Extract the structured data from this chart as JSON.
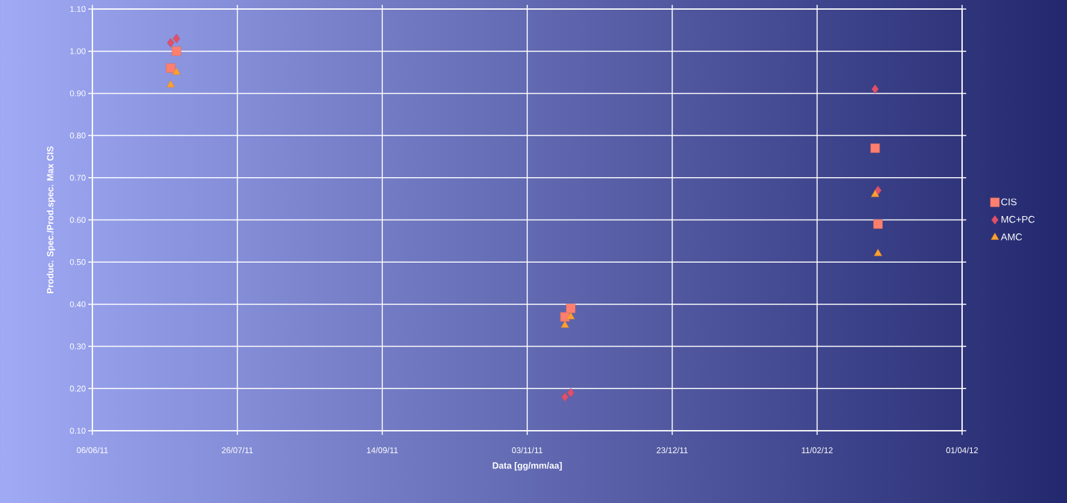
{
  "chart_data": {
    "type": "scatter",
    "xlabel": "Data [gg/mm/aa]",
    "ylabel": "Produc. Spec./Prod.spec. Max CIS",
    "xlim": [
      "2011-06-06",
      "2012-04-01"
    ],
    "xticks": [
      {
        "value": "2011-06-06",
        "label": "06/06/11"
      },
      {
        "value": "2011-07-26",
        "label": "26/07/11"
      },
      {
        "value": "2011-09-14",
        "label": "14/09/11"
      },
      {
        "value": "2011-11-03",
        "label": "03/11/11"
      },
      {
        "value": "2011-12-23",
        "label": "23/12/11"
      },
      {
        "value": "2012-02-11",
        "label": "11/02/12"
      },
      {
        "value": "2012-04-01",
        "label": "01/04/12"
      }
    ],
    "ylim": [
      0.1,
      1.1
    ],
    "yticks": [
      {
        "value": 0.1,
        "label": "0.10"
      },
      {
        "value": 0.2,
        "label": "0.20"
      },
      {
        "value": 0.3,
        "label": "0.30"
      },
      {
        "value": 0.4,
        "label": "0.40"
      },
      {
        "value": 0.5,
        "label": "0.50"
      },
      {
        "value": 0.6,
        "label": "0.60"
      },
      {
        "value": 0.7,
        "label": "0.70"
      },
      {
        "value": 0.8,
        "label": "0.80"
      },
      {
        "value": 0.9,
        "label": "0.90"
      },
      {
        "value": 1.0,
        "label": "1.00"
      },
      {
        "value": 1.1,
        "label": "1.10"
      }
    ],
    "grid": true,
    "legend": "right",
    "x": [
      "2011-07-03",
      "2011-07-05",
      "2011-11-16",
      "2011-11-18",
      "2012-03-02",
      "2012-03-03"
    ],
    "series": [
      {
        "name": "CIS",
        "color": "#ff7f6e",
        "marker": "square",
        "values": [
          0.96,
          1.0,
          0.37,
          0.39,
          0.77,
          0.59
        ]
      },
      {
        "name": "MC+PC",
        "color": "#e0506a",
        "marker": "diamond",
        "values": [
          1.02,
          1.03,
          0.18,
          0.19,
          0.91,
          0.67
        ]
      },
      {
        "name": "AMC",
        "color": "#ffa030",
        "marker": "triangle",
        "values": [
          0.92,
          0.95,
          0.35,
          0.37,
          0.66,
          0.52
        ]
      }
    ]
  }
}
